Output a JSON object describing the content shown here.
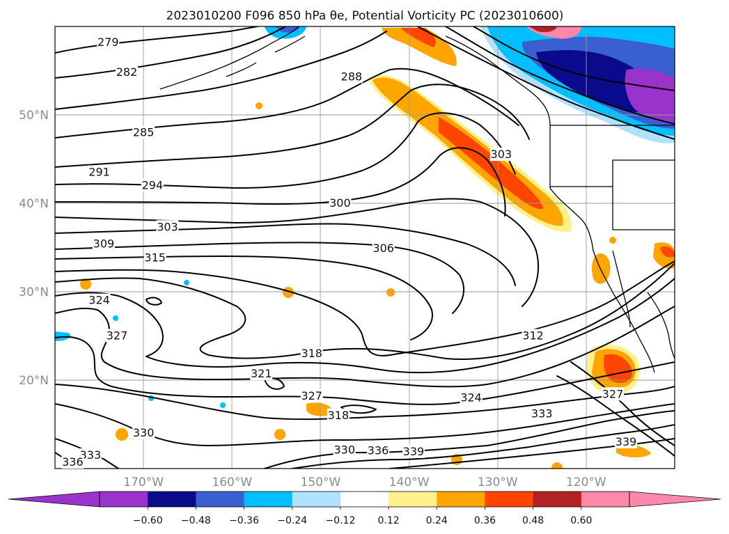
{
  "title": "2023010200 F096 850 hPa θe, Potential Vorticity PC (2023010600)",
  "colors": {
    "background": "#ffffff",
    "contour": "#000000",
    "grid": "#9a9a9a",
    "axis_label": "#8a8a8a"
  },
  "map": {
    "lon_range": [
      -180,
      -110
    ],
    "lat_range": [
      10,
      60
    ],
    "lon_ticks": [
      {
        "value": -170,
        "label": "170°W"
      },
      {
        "value": -160,
        "label": "160°W"
      },
      {
        "value": -150,
        "label": "150°W"
      },
      {
        "value": -140,
        "label": "140°W"
      },
      {
        "value": -130,
        "label": "130°W"
      },
      {
        "value": -120,
        "label": "120°W"
      }
    ],
    "lat_ticks": [
      {
        "value": 50,
        "label": "50°N"
      },
      {
        "value": 40,
        "label": "40°N"
      },
      {
        "value": 30,
        "label": "30°N"
      },
      {
        "value": 20,
        "label": "20°N"
      }
    ],
    "contour_labels": [
      {
        "text": "279",
        "lon": -174.0,
        "lat": 58.2
      },
      {
        "text": "282",
        "lon": -171.9,
        "lat": 54.8
      },
      {
        "text": "285",
        "lon": -170.0,
        "lat": 48.0
      },
      {
        "text": "288",
        "lon": -146.5,
        "lat": 54.3
      },
      {
        "text": "291",
        "lon": -175.0,
        "lat": 43.5
      },
      {
        "text": "294",
        "lon": -169.0,
        "lat": 42.0
      },
      {
        "text": "300",
        "lon": -147.8,
        "lat": 40.0
      },
      {
        "text": "303",
        "lon": -167.3,
        "lat": 37.3
      },
      {
        "text": "303",
        "lon": -129.6,
        "lat": 45.5
      },
      {
        "text": "306",
        "lon": -142.9,
        "lat": 34.9
      },
      {
        "text": "309",
        "lon": -174.5,
        "lat": 35.4
      },
      {
        "text": "312",
        "lon": -126.0,
        "lat": 25.0
      },
      {
        "text": "315",
        "lon": -168.7,
        "lat": 33.8
      },
      {
        "text": "318",
        "lon": -151.0,
        "lat": 23.0
      },
      {
        "text": "318",
        "lon": -148.0,
        "lat": 16.0
      },
      {
        "text": "321",
        "lon": -156.7,
        "lat": 20.7
      },
      {
        "text": "324",
        "lon": -175.0,
        "lat": 29.0
      },
      {
        "text": "324",
        "lon": -133.0,
        "lat": 18.0
      },
      {
        "text": "327",
        "lon": -173.0,
        "lat": 25.0
      },
      {
        "text": "327",
        "lon": -151.0,
        "lat": 18.2
      },
      {
        "text": "327",
        "lon": -117.0,
        "lat": 18.4
      },
      {
        "text": "330",
        "lon": -170.0,
        "lat": 14.0
      },
      {
        "text": "330",
        "lon": -147.3,
        "lat": 12.1
      },
      {
        "text": "333",
        "lon": -176.0,
        "lat": 11.5
      },
      {
        "text": "333",
        "lon": -125.0,
        "lat": 16.2
      },
      {
        "text": "336",
        "lon": -178.0,
        "lat": 10.7
      },
      {
        "text": "336",
        "lon": -143.5,
        "lat": 12.0
      },
      {
        "text": "339",
        "lon": -139.5,
        "lat": 11.9
      },
      {
        "text": "339",
        "lon": -115.5,
        "lat": 13.0
      }
    ]
  },
  "colorbar": {
    "ticks": [
      "−0.60",
      "−0.48",
      "−0.36",
      "−0.24",
      "−0.12",
      "0.12",
      "0.24",
      "0.36",
      "0.48",
      "0.60"
    ],
    "under_color": "#9933cc",
    "over_color": "#ff88aa",
    "bins": [
      "#9933cc",
      "#0a0a8c",
      "#3a5fd0",
      "#00bfff",
      "#b0e2ff",
      "#ffffff",
      "#fff08c",
      "#ffa500",
      "#ff4500",
      "#b22222",
      "#ff88aa"
    ]
  }
}
